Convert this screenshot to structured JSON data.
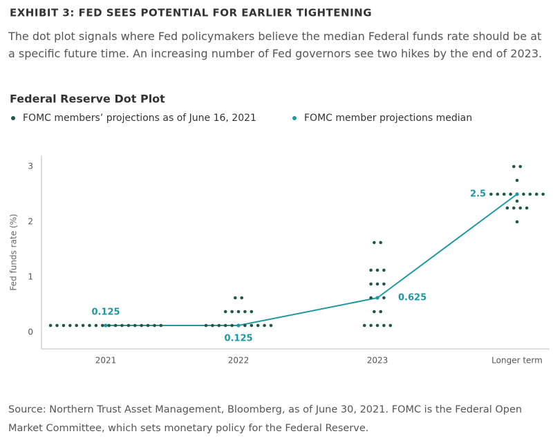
{
  "chart_data": {
    "type": "dot",
    "title": "EXHIBIT 3: FED SEES POTENTIAL FOR EARLIER TIGHTENING",
    "subtitle": "The dot plot signals where Fed policymakers believe the median Federal funds rate should be at a specific future time. An increasing number of Fed governors see two hikes by the end of 2023.",
    "chart_title": "Federal Reserve Dot Plot",
    "y_label": "Fed funds rate (%)",
    "source": "Source: Northern Trust Asset Management, Bloomberg, as of June 30, 2021. FOMC is the Federal Open Market Committee, which sets monetary policy for the Federal Reserve.",
    "categories": [
      "2021",
      "2022",
      "2023",
      "Longer term"
    ],
    "ylim": [
      -0.3,
      3.2
    ],
    "yticks": [
      0,
      1,
      2,
      3
    ],
    "series": [
      {
        "name": "FOMC members’ projections as of June 16, 2021",
        "color": "#1d5a44",
        "values": [
          [
            0.125,
            0.125,
            0.125,
            0.125,
            0.125,
            0.125,
            0.125,
            0.125,
            0.125,
            0.125,
            0.125,
            0.125,
            0.125,
            0.125,
            0.125,
            0.125,
            0.125,
            0.125
          ],
          [
            0.625,
            0.625,
            0.375,
            0.375,
            0.375,
            0.375,
            0.375,
            0.125,
            0.125,
            0.125,
            0.125,
            0.125,
            0.125,
            0.125,
            0.125,
            0.125,
            0.125,
            0.125
          ],
          [
            1.625,
            1.625,
            1.125,
            1.125,
            1.125,
            0.875,
            0.875,
            0.875,
            0.625,
            0.625,
            0.625,
            0.375,
            0.375,
            0.125,
            0.125,
            0.125,
            0.125,
            0.125
          ],
          [
            3.0,
            3.0,
            2.75,
            2.5,
            2.5,
            2.5,
            2.5,
            2.5,
            2.5,
            2.5,
            2.5,
            2.5,
            2.375,
            2.25,
            2.25,
            2.25,
            2.25,
            2.0
          ]
        ]
      },
      {
        "name": "FOMC member projections median",
        "color": "#1c97a4",
        "values": [
          0.125,
          0.125,
          0.625,
          2.5
        ]
      }
    ]
  }
}
